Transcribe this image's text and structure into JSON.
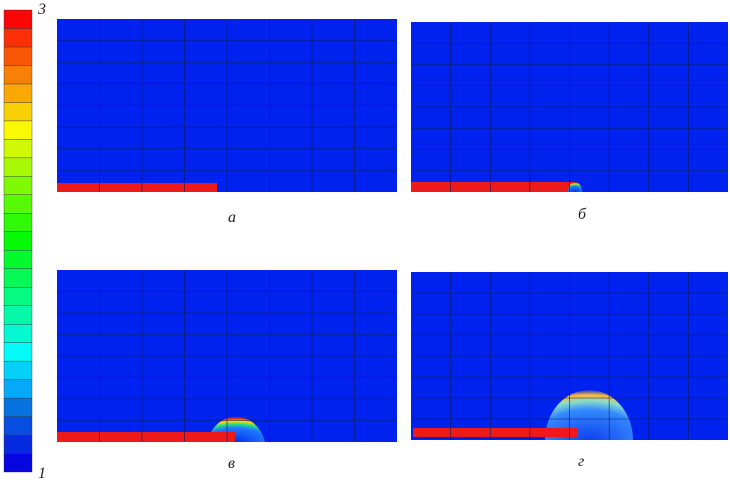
{
  "colorbar": {
    "max": 3,
    "min": 1
  },
  "panels": [
    {
      "label": "а"
    },
    {
      "label": "б"
    },
    {
      "label": "в"
    },
    {
      "label": "г"
    }
  ]
}
